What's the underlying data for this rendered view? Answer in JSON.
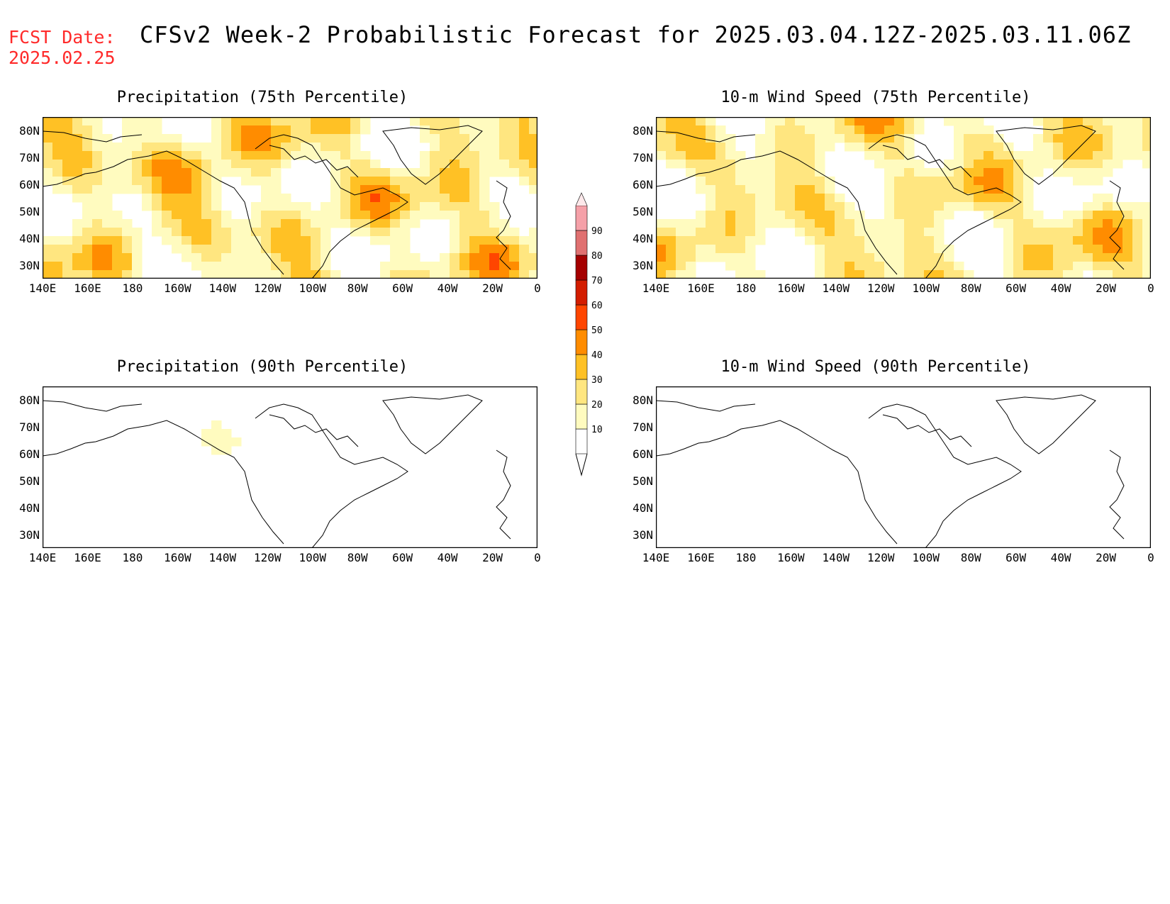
{
  "header": {
    "fcst_label": "FCST Date:",
    "fcst_date": "2025.02.25",
    "title": "CFSv2 Week-2 Probabilistic Forecast for 2025.03.04.12Z-2025.03.11.06Z"
  },
  "colors": {
    "fcst_red": "#ff2a2a",
    "levels": [
      "#fffbbf",
      "#ffe680",
      "#ffc125",
      "#ff8c00",
      "#ff4500",
      "#d31d00",
      "#a50000",
      "#e07070",
      "#f5a0a8",
      "#fcd4d8"
    ]
  },
  "colorbar": {
    "labels": [
      "10",
      "20",
      "30",
      "40",
      "50",
      "60",
      "70",
      "80",
      "90"
    ]
  },
  "axes": {
    "lon_labels": [
      "140E",
      "160E",
      "180",
      "160W",
      "140W",
      "120W",
      "100W",
      "80W",
      "60W",
      "40W",
      "20W",
      "0"
    ],
    "lat_labels": [
      "80N",
      "70N",
      "60N",
      "50N",
      "40N",
      "30N"
    ]
  },
  "panels": [
    {
      "title": "Precipitation (75th Percentile)",
      "intensity": 1.0,
      "variant": "precip"
    },
    {
      "title": "10-m Wind Speed (75th Percentile)",
      "intensity": 0.95,
      "variant": "wind"
    },
    {
      "title": "Precipitation (90th Percentile)",
      "intensity": 0.35,
      "variant": "precip"
    },
    {
      "title": "10-m Wind Speed (90th Percentile)",
      "intensity": 0.3,
      "variant": "wind"
    }
  ]
}
